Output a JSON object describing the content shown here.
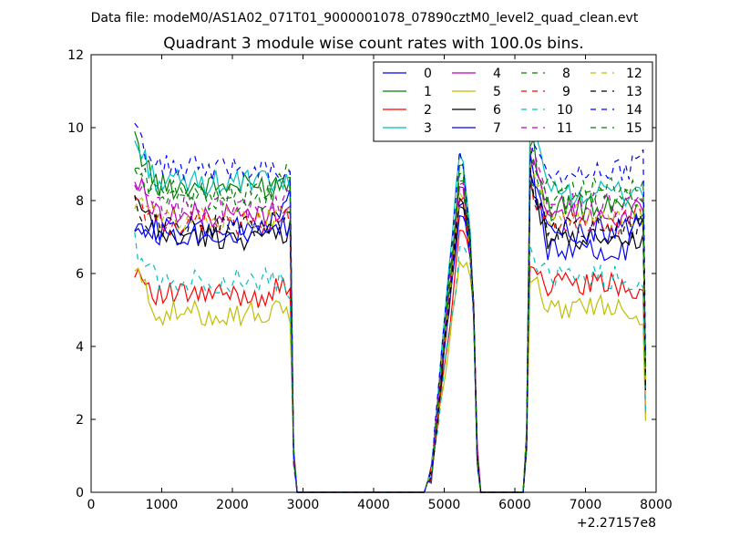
{
  "chart_data": {
    "type": "line",
    "suptitle": "Data file: modeM0/AS1A02_071T01_9000001078_07890cztM0_level2_quad_clean.evt",
    "title": "Quadrant 3 module wise count rates with 100.0s bins.",
    "xlabel": "",
    "ylabel": "",
    "x_offset_label": "+2.27157e8",
    "xlim": [
      0,
      8000
    ],
    "ylim": [
      0,
      12
    ],
    "xticks": [
      0,
      1000,
      2000,
      3000,
      4000,
      5000,
      6000,
      7000,
      8000
    ],
    "yticks": [
      0,
      2,
      4,
      6,
      8,
      10,
      12
    ],
    "legend_position": "top-right",
    "grid": false,
    "segments": [
      {
        "x_start": 617,
        "x_end": 2817
      },
      {
        "x_start": 4817,
        "x_end": 5417
      },
      {
        "x_start": 6217,
        "x_end": 7817
      }
    ],
    "gaps": [
      {
        "x_start": 2917,
        "x_end": 4717
      },
      {
        "x_start": 5517,
        "x_end": 6117
      }
    ],
    "series": [
      {
        "name": "0",
        "color": "#0000ff",
        "dash": "solid",
        "segment_levels": [
          7.2,
          8.4,
          6.7
        ],
        "segment_edges": [
          [
            7.5,
            8.2
          ],
          [
            0.5,
            0.5
          ],
          [
            9.0,
            7.8
          ]
        ]
      },
      {
        "name": "1",
        "color": "#008000",
        "dash": "solid",
        "segment_levels": [
          8.4,
          9.3,
          7.8
        ],
        "segment_edges": [
          [
            9.6,
            8.6
          ],
          [
            0.5,
            0.5
          ],
          [
            9.8,
            7.8
          ]
        ]
      },
      {
        "name": "2",
        "color": "#ff0000",
        "dash": "solid",
        "segment_levels": [
          5.4,
          7.3,
          5.7
        ],
        "segment_edges": [
          [
            6.2,
            5.7
          ],
          [
            0.5,
            0.5
          ],
          [
            6.4,
            5.4
          ]
        ]
      },
      {
        "name": "3",
        "color": "#00bfbf",
        "dash": "solid",
        "segment_levels": [
          8.5,
          9.7,
          8.2
        ],
        "segment_edges": [
          [
            9.6,
            8.4
          ],
          [
            0.5,
            0.5
          ],
          [
            10.4,
            8.3
          ]
        ]
      },
      {
        "name": "4",
        "color": "#bf00bf",
        "dash": "solid",
        "segment_levels": [
          7.6,
          8.7,
          7.6
        ],
        "segment_edges": [
          [
            8.6,
            7.8
          ],
          [
            0.5,
            0.5
          ],
          [
            9.2,
            7.7
          ]
        ]
      },
      {
        "name": "5",
        "color": "#bfbf00",
        "dash": "solid",
        "segment_levels": [
          4.9,
          6.5,
          5.1
        ],
        "segment_edges": [
          [
            6.1,
            4.9
          ],
          [
            0.5,
            0.5
          ],
          [
            5.9,
            4.9
          ]
        ]
      },
      {
        "name": "6",
        "color": "#000000",
        "dash": "solid",
        "segment_levels": [
          7.0,
          8.2,
          6.9
        ],
        "segment_edges": [
          [
            8.0,
            7.2
          ],
          [
            0.5,
            0.5
          ],
          [
            8.7,
            7.0
          ]
        ]
      },
      {
        "name": "7",
        "color": "#0000ff",
        "dash": "solid",
        "segment_levels": [
          7.1,
          8.0,
          7.2
        ],
        "segment_edges": [
          [
            7.4,
            7.3
          ],
          [
            0.5,
            0.5
          ],
          [
            8.9,
            7.4
          ]
        ]
      },
      {
        "name": "8",
        "color": "#008000",
        "dash": "dashed",
        "segment_levels": [
          8.2,
          9.0,
          8.3
        ],
        "segment_edges": [
          [
            9.0,
            8.8
          ],
          [
            0.5,
            0.5
          ],
          [
            9.5,
            8.4
          ]
        ]
      },
      {
        "name": "9",
        "color": "#ff0000",
        "dash": "dashed",
        "segment_levels": [
          7.4,
          8.5,
          7.4
        ],
        "segment_edges": [
          [
            8.1,
            7.5
          ],
          [
            0.5,
            0.5
          ],
          [
            8.4,
            7.6
          ]
        ]
      },
      {
        "name": "10",
        "color": "#00bfbf",
        "dash": "dashed",
        "segment_levels": [
          5.8,
          6.8,
          5.9
        ],
        "segment_edges": [
          [
            6.8,
            5.6
          ],
          [
            0.5,
            0.5
          ],
          [
            6.6,
            5.5
          ]
        ]
      },
      {
        "name": "11",
        "color": "#bf00bf",
        "dash": "dashed",
        "segment_levels": [
          7.8,
          8.8,
          7.9
        ],
        "segment_edges": [
          [
            8.2,
            8.0
          ],
          [
            0.5,
            0.5
          ],
          [
            9.6,
            7.9
          ]
        ]
      },
      {
        "name": "12",
        "color": "#bfbf00",
        "dash": "dashed",
        "segment_levels": [
          7.5,
          8.6,
          7.6
        ],
        "segment_edges": [
          [
            8.0,
            7.6
          ],
          [
            0.5,
            0.5
          ],
          [
            8.9,
            7.5
          ]
        ]
      },
      {
        "name": "13",
        "color": "#000000",
        "dash": "dashed",
        "segment_levels": [
          7.3,
          8.4,
          7.2
        ],
        "segment_edges": [
          [
            7.8,
            7.4
          ],
          [
            0.5,
            0.5
          ],
          [
            8.8,
            7.3
          ]
        ]
      },
      {
        "name": "14",
        "color": "#0000ff",
        "dash": "dashed",
        "segment_levels": [
          8.9,
          9.8,
          8.8
        ],
        "segment_edges": [
          [
            9.9,
            8.6
          ],
          [
            0.5,
            0.5
          ],
          [
            9.4,
            9.4
          ]
        ]
      },
      {
        "name": "15",
        "color": "#008000",
        "dash": "dashed",
        "segment_levels": [
          8.0,
          9.1,
          8.1
        ],
        "segment_edges": [
          [
            8.9,
            8.8
          ],
          [
            0.5,
            0.5
          ],
          [
            8.8,
            8.0
          ]
        ]
      }
    ]
  }
}
